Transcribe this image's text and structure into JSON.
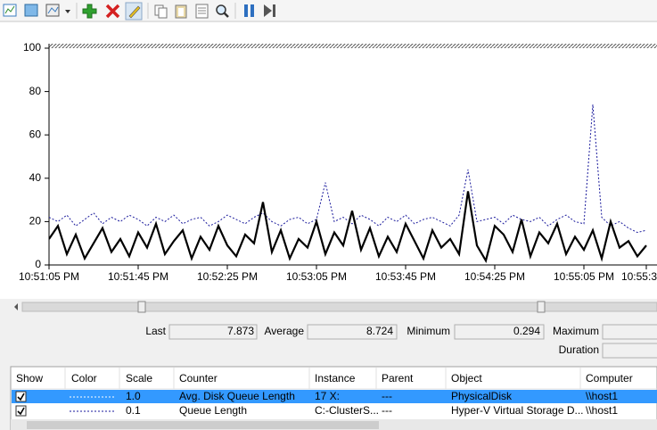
{
  "chart_data": {
    "type": "line",
    "categories": [
      "10:51:05 PM",
      null,
      null,
      null,
      null,
      null,
      null,
      null,
      null,
      null,
      "10:51:45 PM",
      null,
      null,
      null,
      null,
      null,
      null,
      null,
      null,
      null,
      "10:52:25 PM",
      null,
      null,
      null,
      null,
      null,
      null,
      null,
      null,
      null,
      "10:53:05 PM",
      null,
      null,
      null,
      null,
      null,
      null,
      null,
      null,
      null,
      "10:53:45 PM",
      null,
      null,
      null,
      null,
      null,
      null,
      null,
      null,
      null,
      "10:54:25 PM",
      null,
      null,
      null,
      null,
      null,
      null,
      null,
      null,
      null,
      "10:55:05 PM",
      null,
      null,
      null,
      null,
      null,
      null,
      "10:55:3"
    ],
    "series": [
      {
        "name": "Avg. Disk Queue Length",
        "color": "#000000",
        "dashed": false,
        "width": 2.2,
        "values": [
          12,
          18,
          5,
          14,
          3,
          10,
          17,
          6,
          12,
          4,
          15,
          8,
          19,
          5,
          11,
          16,
          3,
          13,
          7,
          18,
          9,
          4,
          14,
          10,
          29,
          6,
          16,
          3,
          12,
          8,
          20,
          5,
          15,
          9,
          25,
          7,
          17,
          4,
          13,
          6,
          19,
          11,
          3,
          16,
          8,
          12,
          5,
          34,
          9,
          2,
          18,
          14,
          6,
          21,
          4,
          15,
          10,
          19,
          5,
          13,
          7,
          16,
          3,
          20,
          8,
          11,
          4,
          9
        ]
      },
      {
        "name": "Queue Length",
        "color": "#1a1a9c",
        "dashed": true,
        "width": 1,
        "values": [
          22,
          20,
          23,
          18,
          21,
          24,
          19,
          22,
          20,
          23,
          21,
          18,
          22,
          20,
          23,
          19,
          21,
          22,
          18,
          20,
          23,
          21,
          19,
          22,
          24,
          20,
          18,
          21,
          22,
          19,
          21,
          38,
          20,
          22,
          19,
          23,
          21,
          18,
          22,
          20,
          23,
          19,
          21,
          22,
          20,
          18,
          23,
          44,
          20,
          21,
          22,
          19,
          23,
          21,
          20,
          22,
          18,
          21,
          23,
          20,
          19,
          74,
          22,
          18,
          20,
          17,
          15,
          16
        ]
      }
    ],
    "ylim": [
      0,
      100
    ],
    "yticks": [
      0,
      20,
      40,
      60,
      80,
      100
    ],
    "grid": false
  },
  "stats": {
    "last_label": "Last",
    "last": "7.873",
    "average_label": "Average",
    "average": "8.724",
    "minimum_label": "Minimum",
    "minimum": "0.294",
    "maximum_label": "Maximum",
    "duration_label": "Duration"
  },
  "table": {
    "columns": [
      "Show",
      "Color",
      "Scale",
      "Counter",
      "Instance",
      "Parent",
      "Object",
      "Computer"
    ],
    "rows": [
      {
        "scale": "1.0",
        "instance": "17 X:",
        "parent": "---",
        "object": "PhysicalDisk",
        "computer": "\\\\host1"
      },
      {
        "scale": "0.1",
        "instance": "C:-ClusterS...",
        "parent": "---",
        "object": "Hyper-V Virtual Storage D...",
        "computer": "\\\\host1"
      }
    ]
  }
}
